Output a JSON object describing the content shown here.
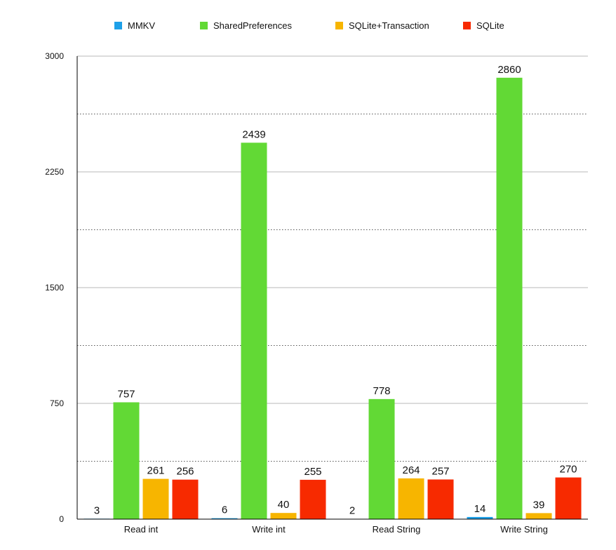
{
  "chart_data": {
    "type": "bar",
    "categories": [
      "Read int",
      "Write int",
      "Read String",
      "Write String"
    ],
    "series": [
      {
        "name": "MMKV",
        "color": "#1ea0e8",
        "values": [
          3,
          6,
          2,
          14
        ]
      },
      {
        "name": "SharedPreferences",
        "color": "#62d935",
        "values": [
          757,
          2439,
          778,
          2860
        ]
      },
      {
        "name": "SQLite+Transaction",
        "color": "#f7b500",
        "values": [
          261,
          40,
          264,
          39
        ]
      },
      {
        "name": "SQLite",
        "color": "#f72a00",
        "values": [
          256,
          255,
          257,
          270
        ]
      }
    ],
    "title": "",
    "xlabel": "",
    "ylabel": "",
    "ylim": [
      0,
      3000
    ],
    "yticks": [
      "0",
      "750",
      "1500",
      "2250",
      "3000"
    ],
    "yticks_values": [
      0,
      750,
      1500,
      2250,
      3000
    ],
    "minor_grid_values": [
      375,
      1125,
      1875,
      2625
    ],
    "grid": true,
    "legend_position": "top-center"
  }
}
